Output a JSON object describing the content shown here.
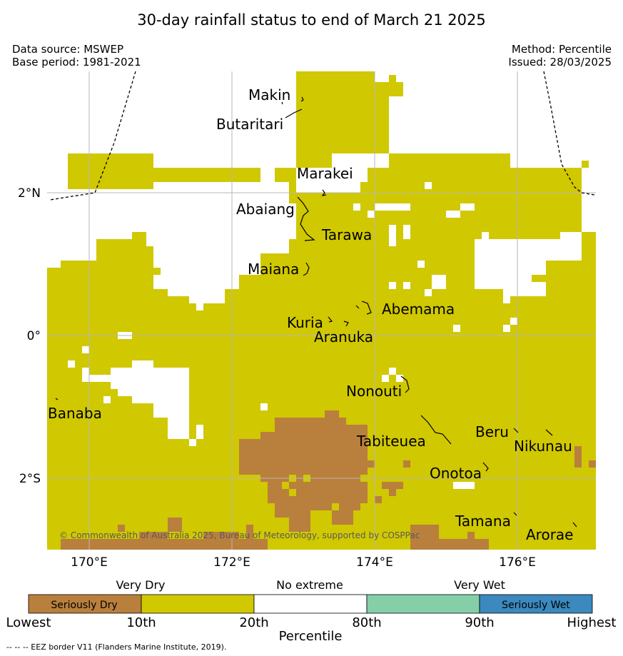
{
  "header": {
    "title": "30-day rainfall status to end of March 21 2025",
    "data_source": "Data source: MSWEP",
    "base_period": "Base period: 1981-2021",
    "method": "Method: Percentile",
    "issued": "Issued: 28/03/2025"
  },
  "map": {
    "lat_ticks": [
      "2°N",
      "0°",
      "2°S"
    ],
    "lon_ticks": [
      "170°E",
      "172°E",
      "174°E",
      "176°E"
    ],
    "places": [
      "Makin",
      "Butaritari",
      "Marakei",
      "Abaiang",
      "Tarawa",
      "Maiana",
      "Abemama",
      "Kuria",
      "Aranuka",
      "Nonouti",
      "Banaba",
      "Beru",
      "Tabiteuea",
      "Nikunau",
      "Onotoa",
      "Tamana",
      "Arorae"
    ],
    "copyright": "© Commonwealth of Australia 2025, Bureau of Meteorology, supported by COSPPac"
  },
  "legend": {
    "groups": [
      "Very Dry",
      "No extreme",
      "Very Wet"
    ],
    "boxes": [
      {
        "label": "Seriously Dry",
        "color": "#b97f3d"
      },
      {
        "label": "",
        "color": "#d0c800"
      },
      {
        "label": "",
        "color": "#ffffff"
      },
      {
        "label": "",
        "color": "#84cfa8"
      },
      {
        "label": "Seriously Wet",
        "color": "#3b89be"
      }
    ],
    "ticks": [
      "Lowest",
      "10th",
      "20th",
      "80th",
      "90th",
      "Highest"
    ],
    "axis_title": "Percentile"
  },
  "footer": "--  --  -- EEZ border V11 (Flanders Marine Institute, 2019).",
  "colors": {
    "seriously_dry": "#b97f3d",
    "very_dry": "#d0c800",
    "no_extreme": "#ffffff",
    "very_wet": "#84cfa8",
    "seriously_wet": "#3b89be"
  }
}
